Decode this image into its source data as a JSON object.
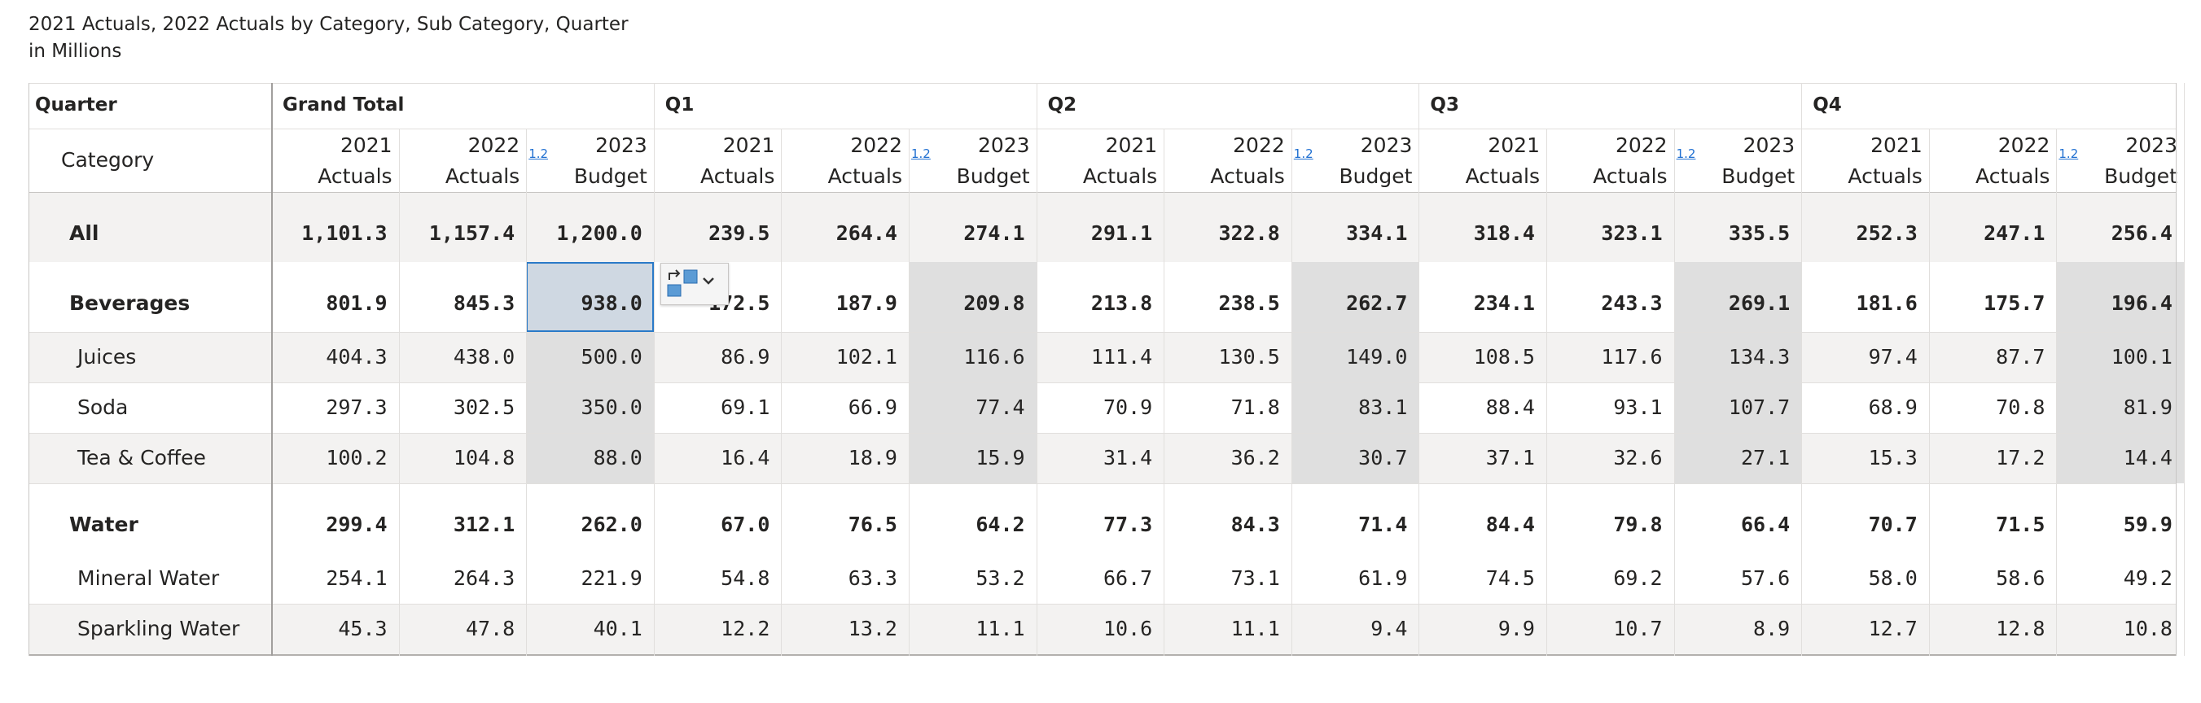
{
  "header": {
    "title": "2021 Actuals, 2022 Actuals by Category, Sub Category, Quarter",
    "subtitle": "in Millions"
  },
  "table": {
    "quarter_label": "Quarter",
    "category_label": "Category",
    "groups": [
      "Grand Total",
      "Q1",
      "Q2",
      "Q3",
      "Q4"
    ],
    "measures": [
      {
        "top": "2021",
        "bottom": "Actuals"
      },
      {
        "top": "2022",
        "bottom": "Actuals"
      },
      {
        "top": "2023",
        "bottom": "Budget"
      }
    ],
    "ratio_label": "1.2",
    "rows": [
      {
        "label": "All",
        "bold": true,
        "values": [
          "1,101.3",
          "1,157.4",
          "1,200.0",
          "239.5",
          "264.4",
          "274.1",
          "291.1",
          "322.8",
          "334.1",
          "318.4",
          "323.1",
          "335.5",
          "252.3",
          "247.1",
          "256.4"
        ]
      },
      {
        "label": "Beverages",
        "bold": true,
        "values": [
          "801.9",
          "845.3",
          "938.0",
          "172.5",
          "187.9",
          "209.8",
          "213.8",
          "238.5",
          "262.7",
          "234.1",
          "243.3",
          "269.1",
          "181.6",
          "175.7",
          "196.4"
        ]
      },
      {
        "label": "Juices",
        "bold": false,
        "values": [
          "404.3",
          "438.0",
          "500.0",
          "86.9",
          "102.1",
          "116.6",
          "111.4",
          "130.5",
          "149.0",
          "108.5",
          "117.6",
          "134.3",
          "97.4",
          "87.7",
          "100.1"
        ]
      },
      {
        "label": "Soda",
        "bold": false,
        "values": [
          "297.3",
          "302.5",
          "350.0",
          "69.1",
          "66.9",
          "77.4",
          "70.9",
          "71.8",
          "83.1",
          "88.4",
          "93.1",
          "107.7",
          "68.9",
          "70.8",
          "81.9"
        ]
      },
      {
        "label": "Tea & Coffee",
        "bold": false,
        "values": [
          "100.2",
          "104.8",
          "88.0",
          "16.4",
          "18.9",
          "15.9",
          "31.4",
          "36.2",
          "30.7",
          "37.1",
          "32.6",
          "27.1",
          "15.3",
          "17.2",
          "14.4"
        ]
      },
      {
        "label": "Water",
        "bold": true,
        "values": [
          "299.4",
          "312.1",
          "262.0",
          "67.0",
          "76.5",
          "64.2",
          "77.3",
          "84.3",
          "71.4",
          "84.4",
          "79.8",
          "66.4",
          "70.7",
          "71.5",
          "59.9"
        ]
      },
      {
        "label": "Mineral Water",
        "bold": false,
        "values": [
          "254.1",
          "264.3",
          "221.9",
          "54.8",
          "63.3",
          "53.2",
          "66.7",
          "73.1",
          "61.9",
          "74.5",
          "69.2",
          "57.6",
          "58.0",
          "58.6",
          "49.2"
        ]
      },
      {
        "label": "Sparkling Water",
        "bold": false,
        "values": [
          "45.3",
          "47.8",
          "40.1",
          "12.2",
          "13.2",
          "11.1",
          "10.6",
          "11.1",
          "9.4",
          "9.9",
          "10.7",
          "8.9",
          "12.7",
          "12.8",
          "10.8"
        ]
      }
    ]
  },
  "icons": {
    "float_tool": "swap-cells-icon",
    "dropdown": "chevron-down-icon"
  }
}
